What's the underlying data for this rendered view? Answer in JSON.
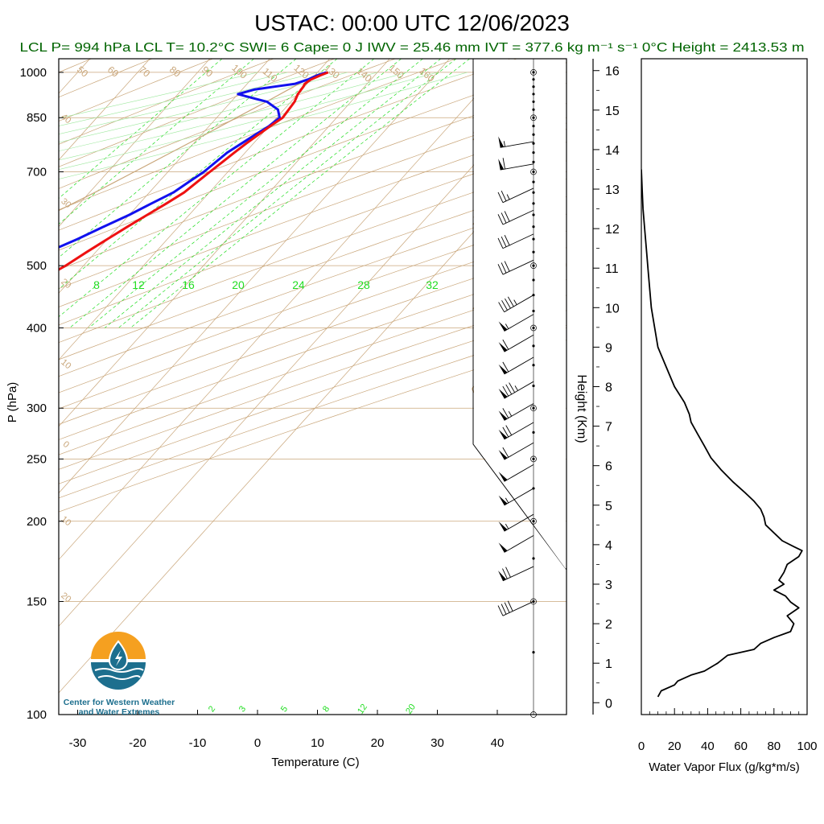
{
  "title": "USTAC: 00:00 UTC 12/06/2023",
  "subtitle": "LCL P= 994 hPa  LCL T= 10.2°C  SWI= 6  Cape= 0 J  IWV = 25.46 mm  IVT = 377.6 kg m⁻¹ s⁻¹  0°C Height = 2413.53 m",
  "colors": {
    "temperature": "#ee1111",
    "dewpoint": "#1111ee",
    "isotherm": "#c9a67a",
    "mixing_ratio": "#22dd22",
    "flux": "#000000",
    "logo_orange": "#f5a020",
    "logo_teal": "#1d6f8e"
  },
  "logo": {
    "icon": "water-drop-wave-icon",
    "line1": "Center for Western Weather",
    "line2": "and Water Extremes"
  },
  "chart_data": [
    {
      "type": "line",
      "name": "skewt",
      "xlabel": "Temperature (C)",
      "ylabel": "P (hPa)",
      "xlim": [
        -33,
        52
      ],
      "ylim": [
        1050,
        100
      ],
      "y_scale": "log",
      "x_ticks": [
        "-30",
        "-20",
        "-10",
        "0",
        "10",
        "20",
        "30",
        "40"
      ],
      "y_ticks": [
        "100",
        "150",
        "200",
        "250",
        "300",
        "400",
        "500",
        "700",
        "850",
        "1000"
      ],
      "isotherm_labels": [
        "-30",
        "-20",
        "-10",
        "0",
        "10",
        "20",
        "30"
      ],
      "isotherm_labels_left": [
        "40",
        "30",
        "20",
        "10",
        "0",
        "10",
        "20"
      ],
      "dry_adiabat_labels": [
        "50",
        "60",
        "70",
        "80",
        "90",
        "100",
        "110",
        "120",
        "130",
        "140",
        "150",
        "160"
      ],
      "mixing_ratio_labels_top": [
        "8",
        "12",
        "16",
        "20",
        "24",
        "28",
        "32"
      ],
      "mixing_ratio_labels_bottom": [
        "2",
        "3",
        "5",
        "8",
        "12",
        "20"
      ],
      "temperature": {
        "p": [
          1000,
          990,
          975,
          960,
          950,
          925,
          900,
          875,
          850,
          825,
          800,
          775,
          750,
          725,
          700,
          675,
          650,
          625,
          600,
          575,
          550,
          525,
          500,
          475,
          450,
          425,
          400,
          375,
          350,
          325,
          300,
          275,
          250,
          235,
          225,
          217,
          210,
          206,
          203,
          200,
          195,
          185,
          175,
          165,
          160,
          155,
          150
        ],
        "t": [
          11.8,
          11.0,
          10.0,
          9.6,
          9.8,
          10.0,
          10.6,
          10.8,
          11.0,
          10.2,
          9.5,
          8.8,
          8.2,
          7.6,
          7.0,
          6.4,
          5.8,
          4.5,
          3.0,
          1.5,
          0.0,
          -1.5,
          -3.0,
          -5.0,
          -7.0,
          -9.0,
          -11.5,
          -14.0,
          -17.0,
          -20.0,
          -23.0,
          -27.0,
          -31.0,
          -35.0,
          -38.5,
          -39.0,
          -37.0,
          -33.0,
          -30.0,
          -27.0,
          -26.0,
          -27.0,
          -28.5,
          -29.0,
          -28.0,
          -27.0,
          -26.0
        ]
      },
      "dewpoint": {
        "p": [
          1000,
          990,
          975,
          960,
          950,
          940,
          925,
          910,
          900,
          875,
          850,
          825,
          800,
          775,
          750,
          725,
          700,
          675,
          650,
          625,
          600,
          575,
          550,
          525,
          500,
          475,
          450,
          425,
          400,
          375,
          350,
          325,
          300,
          275,
          250,
          235,
          228,
          222,
          218,
          215,
          212,
          210,
          207,
          205,
          203,
          200,
          197,
          193,
          188,
          182,
          175,
          168,
          160,
          155,
          150
        ],
        "t": [
          11.5,
          10.5,
          9.5,
          8.0,
          5.0,
          2.0,
          0.0,
          3.5,
          6.0,
          9.0,
          10.5,
          10.0,
          9.0,
          8.0,
          7.0,
          6.5,
          6.0,
          5.0,
          4.0,
          2.0,
          0.0,
          -2.5,
          -5.0,
          -8.0,
          -11.0,
          -14.0,
          -16.5,
          -19.5,
          -23.0,
          -27.0,
          -30.0,
          -35.5,
          -37.5,
          -42.0,
          -46.0,
          -50.0,
          -51.5,
          -52.5,
          -52.0,
          -51.0,
          -53.0,
          -58.0,
          -65.0,
          -80.0,
          -80.0,
          -73.0,
          -77.0,
          -78.0,
          -77.0,
          -76.0,
          -74.0,
          -74.0,
          -72.0,
          -71.0,
          -71.0
        ]
      },
      "parcel": {
        "p": [
          994,
          950,
          900,
          850,
          800,
          750,
          700,
          650,
          600,
          550,
          500,
          450,
          400,
          350,
          300,
          250,
          200,
          150,
          100
        ],
        "t": [
          10.2,
          8.2,
          5.9,
          3.3,
          0.6,
          -2.4,
          -5.6,
          -9.1,
          -13.2,
          -17.9,
          -23.4,
          -30.2,
          -38.2,
          -47.5,
          -58.5,
          -71.0,
          -86.0,
          -104.0,
          -125.0
        ]
      },
      "wind_barbs": {
        "p": [
          150,
          170,
          190,
          205,
          225,
          245,
          265,
          285,
          305,
          330,
          360,
          390,
          420,
          450,
          510,
          560,
          610,
          660,
          720,
          780
        ],
        "speed_kt": [
          40,
          70,
          50,
          55,
          55,
          50,
          60,
          70,
          65,
          85,
          60,
          60,
          55,
          45,
          30,
          30,
          30,
          25,
          60,
          55
        ],
        "direction_deg": [
          245,
          245,
          240,
          240,
          240,
          240,
          240,
          240,
          240,
          240,
          240,
          240,
          240,
          240,
          245,
          245,
          245,
          245,
          260,
          260
        ]
      }
    },
    {
      "type": "line",
      "name": "water-vapor-flux",
      "xlabel": "Water Vapor Flux (g/kg*m/s)",
      "ylabel": "Height (Km)",
      "xlim": [
        0,
        100
      ],
      "ylim": [
        -0.3,
        16.3
      ],
      "x_ticks": [
        "0",
        "20",
        "40",
        "60",
        "80",
        "100"
      ],
      "y_ticks": [
        "0",
        "1",
        "2",
        "3",
        "4",
        "5",
        "6",
        "7",
        "8",
        "9",
        "10",
        "11",
        "12",
        "13",
        "14",
        "15",
        "16"
      ],
      "flux": {
        "height_km": [
          0.15,
          0.3,
          0.45,
          0.55,
          0.7,
          0.8,
          0.9,
          1.0,
          1.2,
          1.35,
          1.5,
          1.65,
          1.8,
          2.0,
          2.2,
          2.4,
          2.55,
          2.7,
          2.85,
          3.0,
          3.1,
          3.3,
          3.5,
          3.7,
          3.85,
          3.95,
          4.1,
          4.3,
          4.5,
          4.7,
          4.9,
          5.1,
          5.3,
          5.6,
          5.9,
          6.2,
          6.5,
          6.8,
          7.1,
          7.3,
          7.6,
          8.0,
          8.5,
          9.0,
          9.5,
          10.0,
          10.5,
          11.0,
          11.5,
          12.0,
          12.5,
          13.0,
          13.5
        ],
        "value": [
          10,
          12,
          20,
          22,
          30,
          38,
          42,
          46,
          52,
          68,
          72,
          80,
          90,
          92,
          88,
          95,
          90,
          87,
          80,
          86,
          83,
          86,
          88,
          95,
          97,
          92,
          85,
          80,
          75,
          74,
          72,
          68,
          63,
          55,
          48,
          42,
          38,
          34,
          30,
          29,
          26,
          20,
          15,
          10,
          8,
          6,
          5,
          4,
          3,
          2,
          1,
          0.5,
          0
        ]
      }
    }
  ]
}
